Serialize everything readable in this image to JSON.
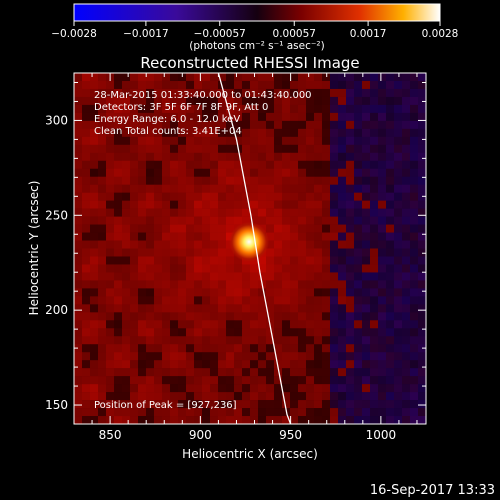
{
  "chart_data": {
    "type": "heatmap",
    "title": "Reconstructed RHESSI Image",
    "xlabel": "Heliocentric X (arcsec)",
    "ylabel": "Heliocentric Y (arcsec)",
    "xlim": [
      830,
      1025
    ],
    "ylim": [
      140,
      325
    ],
    "xticks": [
      850,
      900,
      950,
      1000
    ],
    "yticks": [
      150,
      200,
      250,
      300
    ],
    "colorbar": {
      "label": "(photons cm⁻² s⁻¹ asec⁻²)",
      "range": [
        -0.0028,
        0.0028
      ],
      "ticks": [
        -0.0028,
        -0.0017,
        -0.00057,
        0.00057,
        0.0017,
        0.0028
      ],
      "tick_labels": [
        "−0.0028",
        "−0.0017",
        "−0.00057",
        "0.00057",
        "0.0017",
        "0.0028"
      ]
    },
    "peak": {
      "x": 927,
      "y": 236
    },
    "info_lines": [
      "28-Mar-2015 01:33:40.000 to 01:43:40.000",
      "Detectors: 3F 5F 6F 7F 8F 9F, Att 0",
      "Energy Range: 6.0 - 12.0 keV",
      "Clean    Total counts: 3.41E+04"
    ],
    "peak_label": "Position of Peak = [927,236]",
    "limb_curve": [
      [
        910,
        325
      ],
      [
        920,
        290
      ],
      [
        928,
        250
      ],
      [
        933,
        220
      ],
      [
        940,
        185
      ],
      [
        948,
        145
      ],
      [
        950,
        140
      ]
    ]
  },
  "footer": {
    "timestamp": "16-Sep-2017 13:33"
  }
}
